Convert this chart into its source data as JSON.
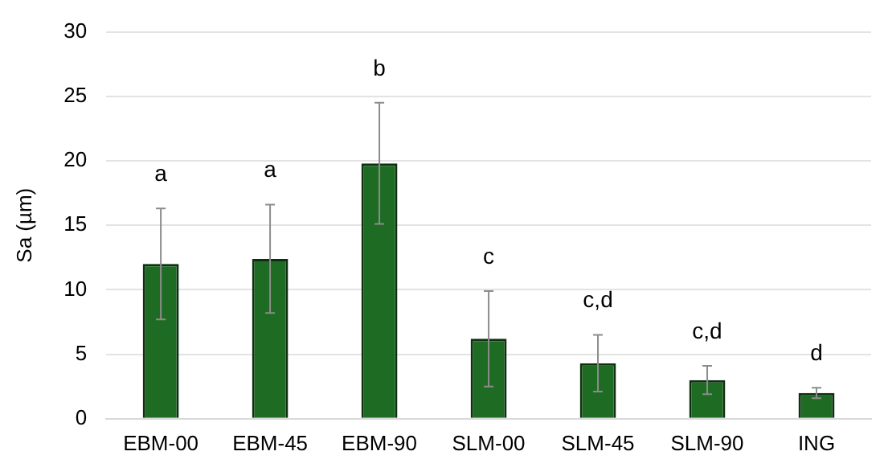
{
  "chart_data": {
    "type": "bar",
    "ylabel": "Sa (µm)",
    "categories": [
      "EBM-00",
      "EBM-45",
      "EBM-90",
      "SLM-00",
      "SLM-45",
      "SLM-90",
      "ING"
    ],
    "values": [
      12.0,
      12.4,
      19.8,
      6.2,
      4.3,
      3.0,
      2.0
    ],
    "errors": [
      4.3,
      4.2,
      4.7,
      3.7,
      2.2,
      1.1,
      0.4
    ],
    "color": "#1e6b23",
    "ylim": [
      0,
      30
    ],
    "yticks": [
      0,
      5,
      10,
      15,
      20,
      25,
      30
    ],
    "grid": "y",
    "legend": false,
    "annotations": [
      "a",
      "a",
      "b",
      "c",
      "c,d",
      "c,d",
      "d"
    ]
  }
}
